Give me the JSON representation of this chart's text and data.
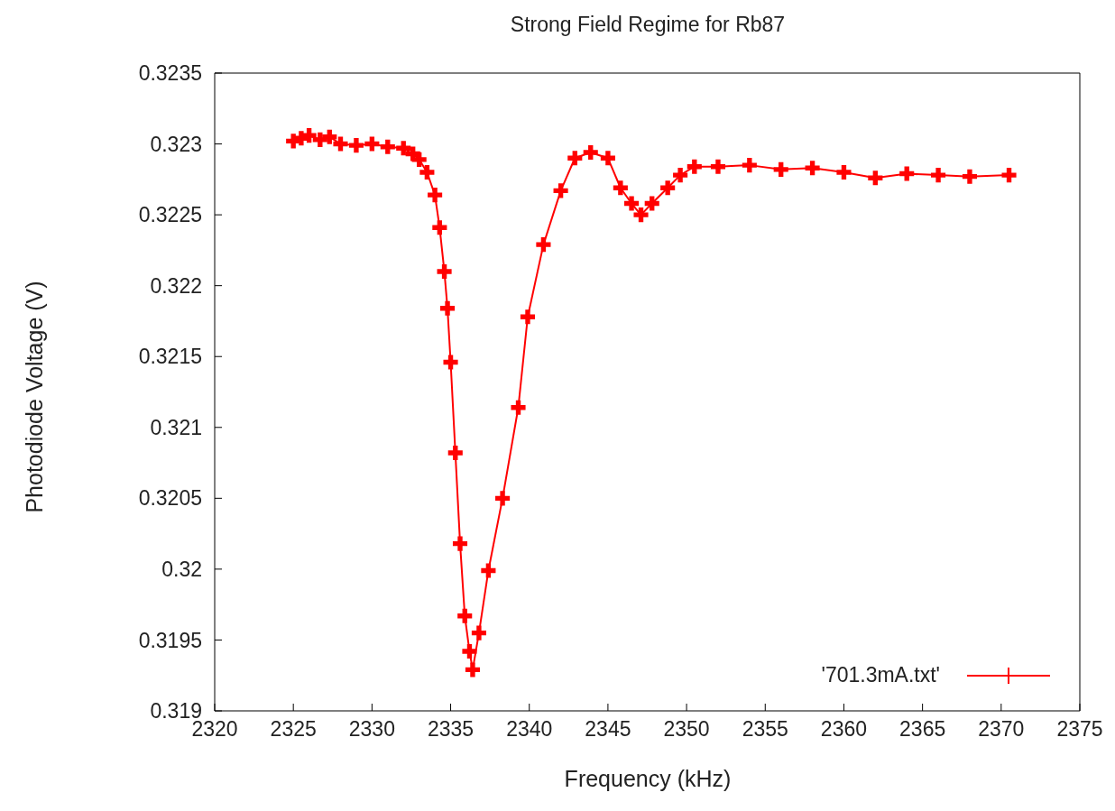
{
  "chart_data": {
    "type": "line",
    "title": "Strong Field Regime for Rb87",
    "xlabel": "Frequency (kHz)",
    "ylabel": "Photodiode Voltage (V)",
    "x": [
      2325.0,
      2325.5,
      2326.0,
      2326.7,
      2327.3,
      2328.0,
      2329.0,
      2330.0,
      2331.0,
      2332.0,
      2332.6,
      2333.0,
      2333.5,
      2334.0,
      2334.3,
      2334.6,
      2334.8,
      2335.0,
      2335.3,
      2335.6,
      2335.9,
      2336.2,
      2336.4,
      2336.8,
      2337.4,
      2338.3,
      2339.3,
      2339.9,
      2340.9,
      2342.0,
      2342.9,
      2343.9,
      2345.0,
      2345.8,
      2346.5,
      2347.1,
      2347.8,
      2348.8,
      2349.6,
      2350.5,
      2352.0,
      2354.0,
      2356.0,
      2358.0,
      2360.0,
      2362.0,
      2364.0,
      2366.0,
      2368.0,
      2370.5
    ],
    "series": [
      {
        "name": "'701.3mA.txt'",
        "color": "#ff0000",
        "values": [
          0.32302,
          0.32304,
          0.32306,
          0.32303,
          0.32305,
          0.323,
          0.32299,
          0.323,
          0.32298,
          0.32297,
          0.32293,
          0.32289,
          0.3228,
          0.32264,
          0.32241,
          0.3221,
          0.32184,
          0.32146,
          0.32082,
          0.32018,
          0.31967,
          0.31942,
          0.31929,
          0.31955,
          0.31999,
          0.3205,
          0.32114,
          0.32178,
          0.32229,
          0.32267,
          0.3229,
          0.32294,
          0.3229,
          0.32269,
          0.32258,
          0.3225,
          0.32258,
          0.32269,
          0.32278,
          0.32284,
          0.32284,
          0.32285,
          0.32282,
          0.32283,
          0.3228,
          0.32276,
          0.32279,
          0.32278,
          0.32277,
          0.32278
        ]
      }
    ],
    "xlim": [
      2320,
      2375
    ],
    "xticks": [
      2320,
      2325,
      2330,
      2335,
      2340,
      2345,
      2350,
      2355,
      2360,
      2365,
      2370,
      2375
    ],
    "ylim": [
      0.319,
      0.3235
    ],
    "yticks": [
      0.319,
      0.3195,
      0.32,
      0.3205,
      0.321,
      0.3215,
      0.322,
      0.3225,
      0.323,
      0.3235
    ],
    "grid": false,
    "legend": "bottom right",
    "marker": "cross",
    "line_style": "solid"
  }
}
